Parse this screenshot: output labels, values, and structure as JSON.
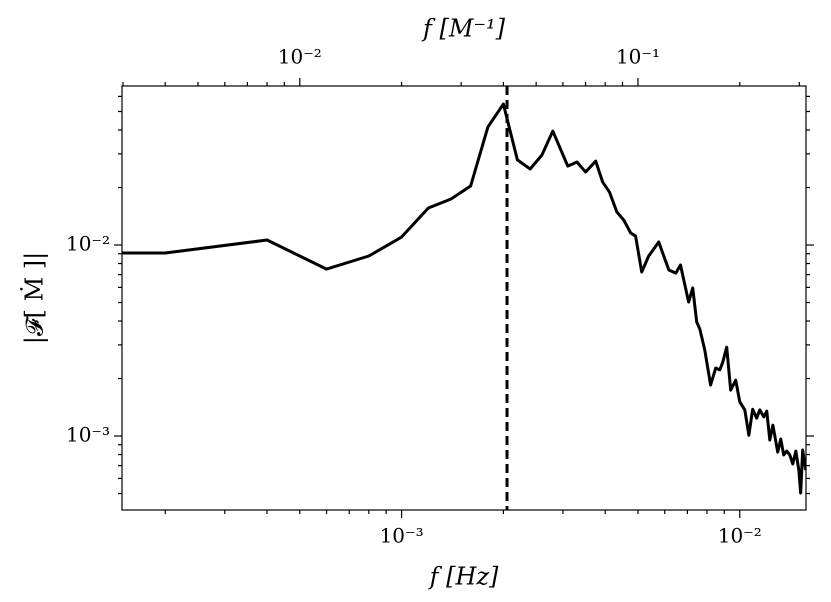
{
  "chart_data": {
    "type": "line",
    "xlabel": "f [Hz]",
    "x2label": "f [M⁻¹]",
    "ylabel": "|𝓕[ Ṁ ]|",
    "xscale": "log",
    "yscale": "log",
    "xlim": [
      0.000149,
      0.0157
    ],
    "x2lim": [
      0.00298,
      0.314
    ],
    "ylim": [
      0.00041,
      0.068
    ],
    "xticks": [
      {
        "value": 0.001,
        "label": "10⁻³"
      },
      {
        "value": 0.01,
        "label": "10⁻²"
      }
    ],
    "xminorticks": [
      0.0002,
      0.0003,
      0.0004,
      0.0005,
      0.0006,
      0.0007,
      0.0008,
      0.0009,
      0.002,
      0.003,
      0.004,
      0.005,
      0.006,
      0.007,
      0.008,
      0.009
    ],
    "x2ticks": [
      {
        "value": 0.01,
        "label": "10⁻²"
      },
      {
        "value": 0.1,
        "label": "10⁻¹"
      }
    ],
    "x2minorticks": [
      0.003,
      0.004,
      0.005,
      0.006,
      0.007,
      0.008,
      0.009,
      0.02,
      0.03,
      0.04,
      0.05,
      0.06,
      0.07,
      0.08,
      0.09,
      0.2,
      0.3
    ],
    "yticks": [
      {
        "value": 0.001,
        "label": "10⁻³"
      },
      {
        "value": 0.01,
        "label": "10⁻²"
      }
    ],
    "yminorticks": [
      0.0005,
      0.0006,
      0.0007,
      0.0008,
      0.0009,
      0.002,
      0.003,
      0.004,
      0.005,
      0.006,
      0.007,
      0.008,
      0.009,
      0.02,
      0.03,
      0.04,
      0.05,
      0.06
    ],
    "x": [
      0.000149,
      0.0002,
      0.0004,
      0.0006,
      0.0008,
      0.001,
      0.0012,
      0.0014,
      0.0016,
      0.0018,
      0.002,
      0.0022,
      0.0024,
      0.0026,
      0.0028,
      0.0031,
      0.0033,
      0.0035,
      0.00375,
      0.00393,
      0.00412,
      0.00433,
      0.00454,
      0.00476,
      0.00492,
      0.00513,
      0.00538,
      0.00576,
      0.00617,
      0.00647,
      0.00668,
      0.00706,
      0.00726,
      0.00746,
      0.00762,
      0.00788,
      0.0082,
      0.00849,
      0.00873,
      0.00891,
      0.00915,
      0.0094,
      0.00973,
      0.01,
      0.01035,
      0.01064,
      0.01092,
      0.01122,
      0.01146,
      0.01178,
      0.01202,
      0.01227,
      0.01253,
      0.01295,
      0.01322,
      0.01349,
      0.01377,
      0.01406,
      0.01435,
      0.01465,
      0.01495,
      0.01514,
      0.01535,
      0.01567
    ],
    "series": [
      {
        "color": "#000000",
        "values": [
          0.00908,
          0.00908,
          0.01062,
          0.00748,
          0.00876,
          0.01101,
          0.01563,
          0.01741,
          0.02037,
          0.0415,
          0.0547,
          0.0279,
          0.025,
          0.0296,
          0.0395,
          0.0259,
          0.0272,
          0.0241,
          0.0275,
          0.0214,
          0.0189,
          0.0149,
          0.0135,
          0.01156,
          0.01114,
          0.00722,
          0.00876,
          0.01037,
          0.0074,
          0.00713,
          0.00786,
          0.00503,
          0.00596,
          0.00395,
          0.00363,
          0.00282,
          0.00185,
          0.00227,
          0.00222,
          0.00244,
          0.00292,
          0.00174,
          0.00196,
          0.00151,
          0.00137,
          0.00101,
          0.00138,
          0.00124,
          0.00137,
          0.00126,
          0.00135,
          0.000953,
          0.00114,
          0.000824,
          0.000964,
          0.000796,
          0.000834,
          0.000796,
          0.000714,
          0.000834,
          0.000664,
          0.000503,
          0.000845,
          0.000664
        ]
      }
    ],
    "vline": {
      "x": 0.00205,
      "color": "#000000",
      "style": "dashed"
    }
  }
}
